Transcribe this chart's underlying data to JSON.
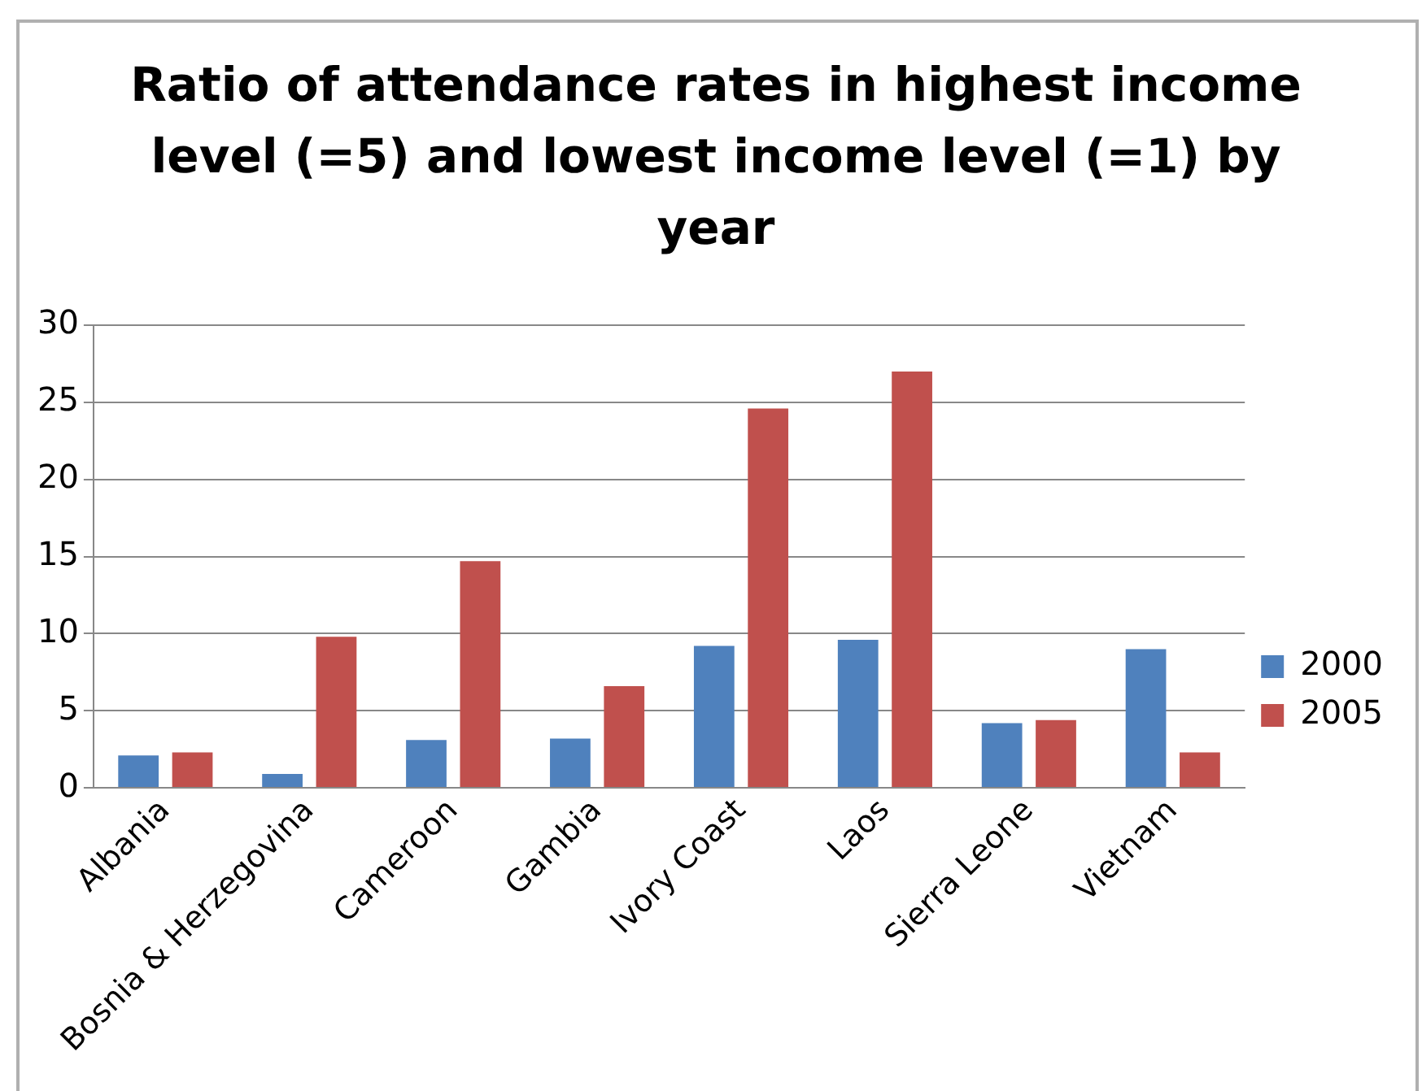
{
  "chart_data": {
    "type": "bar",
    "title": "Ratio of attendance rates in highest income level (=5) and lowest income level (=1) by year",
    "categories": [
      "Albania",
      "Bosnia & Herzegovina",
      "Cameroon",
      "Gambia",
      "Ivory Coast",
      "Laos",
      "Sierra Leone",
      "Vietnam"
    ],
    "series": [
      {
        "name": "2000",
        "color": "#4f81bd",
        "values": [
          2.1,
          0.9,
          3.1,
          3.2,
          9.2,
          9.6,
          4.2,
          9.0
        ]
      },
      {
        "name": "2005",
        "color": "#c0504d",
        "values": [
          2.3,
          9.8,
          14.7,
          6.6,
          24.6,
          27.0,
          4.4,
          2.3
        ]
      }
    ],
    "ylim": [
      0,
      30
    ],
    "yticks": [
      0,
      5,
      10,
      15,
      20,
      25,
      30
    ],
    "grid": "y",
    "legend": "right"
  }
}
